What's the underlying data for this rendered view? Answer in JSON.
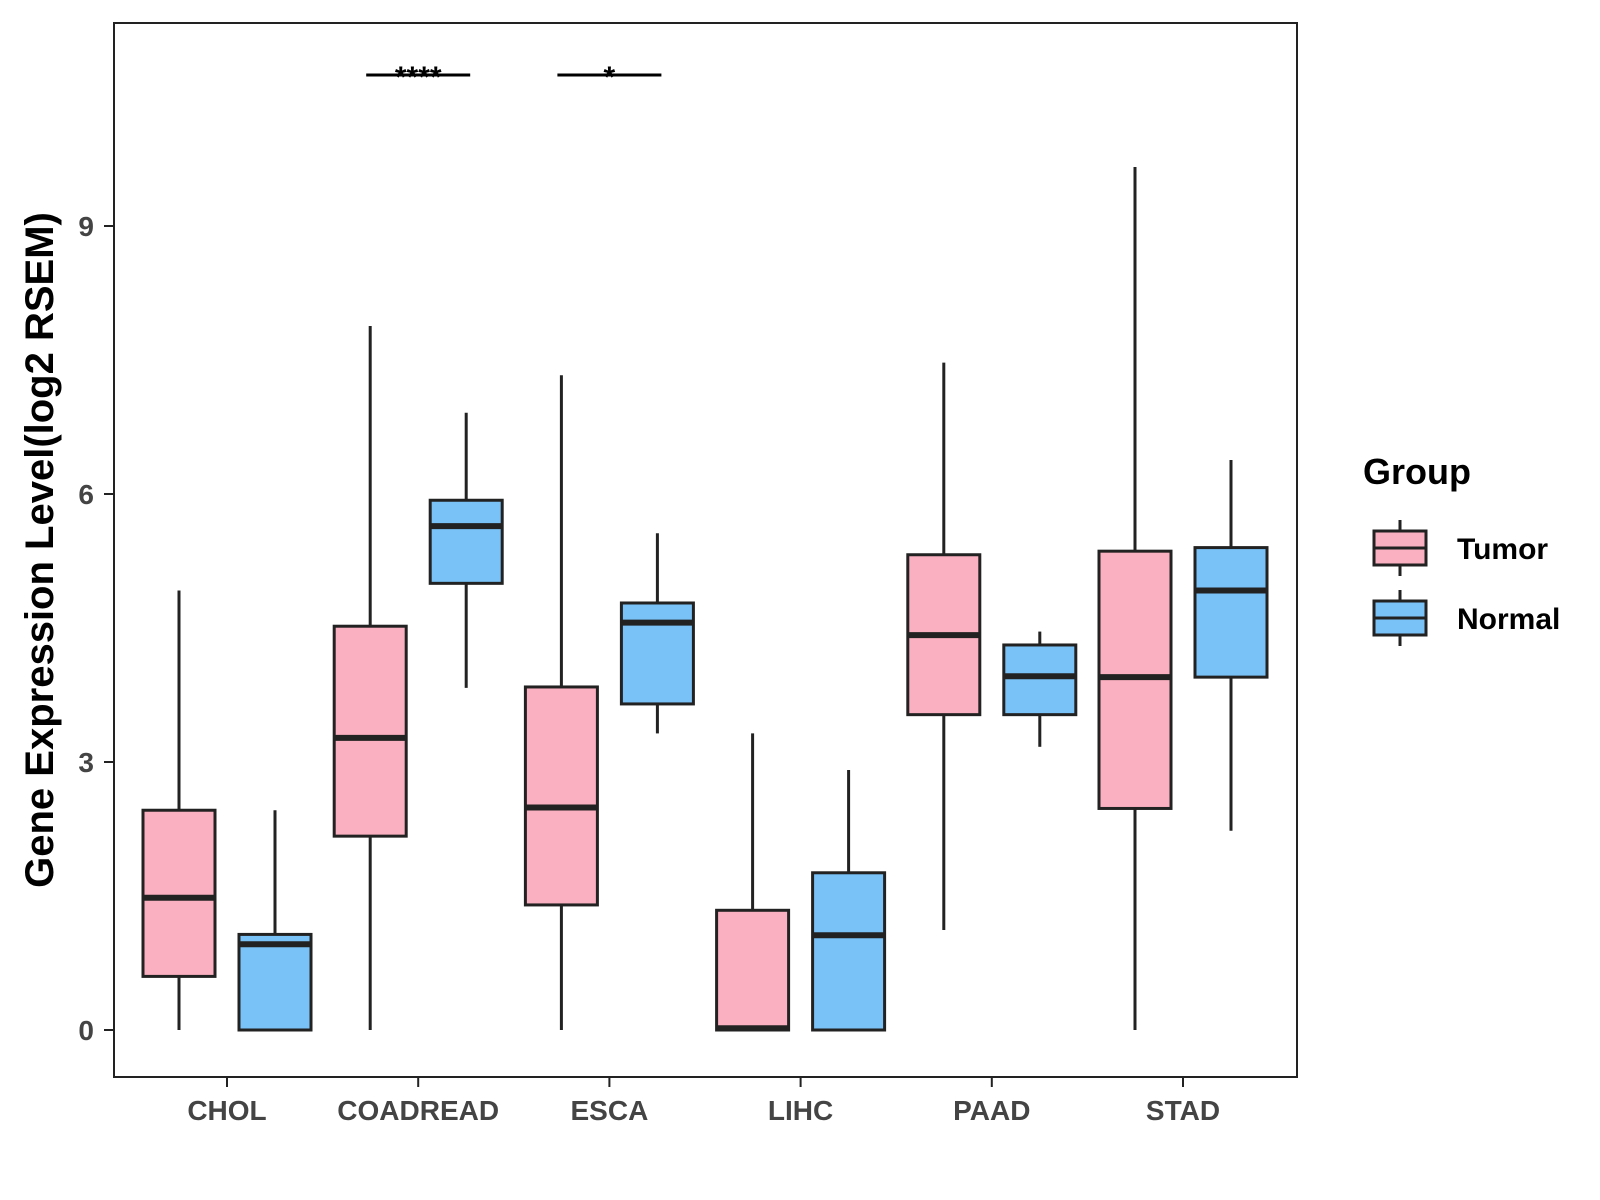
{
  "chart_data": {
    "type": "boxplot",
    "title": "",
    "xlabel": "",
    "ylabel": "Gene Expression Level(log2 RSEM)",
    "ylim": [
      -0.52,
      11.3
    ],
    "yticks": [
      0,
      3,
      6,
      9
    ],
    "ytick_labels": [
      "0",
      "3",
      "6",
      "9"
    ],
    "grid": false,
    "categories": [
      "CHOL",
      "COADREAD",
      "ESCA",
      "LIHC",
      "PAAD",
      "STAD"
    ],
    "legend": {
      "title": "Group",
      "position": "right",
      "entries": [
        {
          "label": "Tumor",
          "color": "#FBB0C1"
        },
        {
          "label": "Normal",
          "color": "#79C2F8"
        }
      ]
    },
    "series": [
      {
        "name": "Tumor",
        "color": "#FBB0C1",
        "boxes": [
          {
            "min": 0.0,
            "q1": 0.6,
            "median": 1.48,
            "q3": 2.46,
            "max": 4.92
          },
          {
            "min": 0.0,
            "q1": 2.17,
            "median": 3.27,
            "q3": 4.52,
            "max": 7.88
          },
          {
            "min": 0.0,
            "q1": 1.4,
            "median": 2.49,
            "q3": 3.84,
            "max": 7.33
          },
          {
            "min": 0.0,
            "q1": 0.0,
            "median": 0.02,
            "q3": 1.34,
            "max": 3.32
          },
          {
            "min": 1.12,
            "q1": 3.53,
            "median": 4.42,
            "q3": 5.32,
            "max": 7.47
          },
          {
            "min": 0.0,
            "q1": 2.48,
            "median": 3.95,
            "q3": 5.36,
            "max": 9.66
          }
        ]
      },
      {
        "name": "Normal",
        "color": "#79C2F8",
        "boxes": [
          {
            "min": 0.0,
            "q1": 0.0,
            "median": 0.96,
            "q3": 1.07,
            "max": 2.46
          },
          {
            "min": 3.83,
            "q1": 5.0,
            "median": 5.64,
            "q3": 5.93,
            "max": 6.91
          },
          {
            "min": 3.32,
            "q1": 3.65,
            "median": 4.56,
            "q3": 4.78,
            "max": 5.56
          },
          {
            "min": 0.0,
            "q1": 0.0,
            "median": 1.06,
            "q3": 1.76,
            "max": 2.91
          },
          {
            "min": 3.17,
            "q1": 3.53,
            "median": 3.96,
            "q3": 4.31,
            "max": 4.46
          },
          {
            "min": 2.23,
            "q1": 3.95,
            "median": 4.92,
            "q3": 5.4,
            "max": 6.38
          }
        ]
      }
    ],
    "significance": [
      {
        "category": "COADREAD",
        "label": "****"
      },
      {
        "category": "ESCA",
        "label": "*"
      }
    ]
  }
}
